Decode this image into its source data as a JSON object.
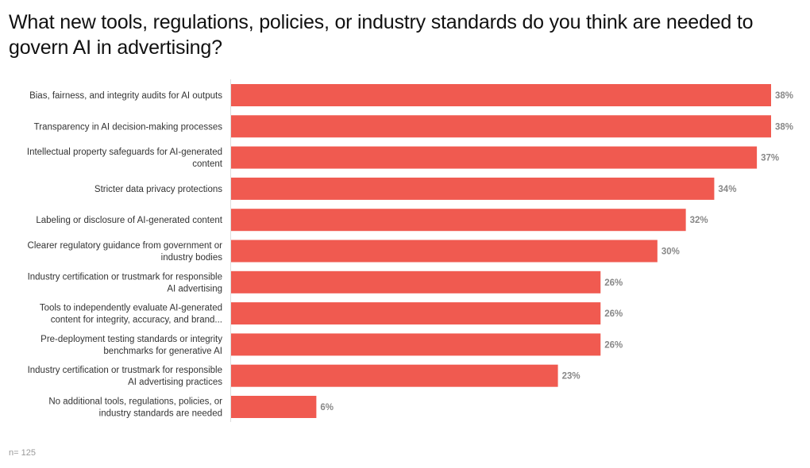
{
  "title": "What new tools, regulations, policies, or industry standards do you think are needed to govern AI in advertising?",
  "note": "n= 125",
  "colors": {
    "bar": "#F05A50",
    "axis": "#dddddd"
  },
  "chart_data": {
    "type": "bar",
    "orientation": "horizontal",
    "title": "What new tools, regulations, policies, or industry standards do you think are needed to govern AI in advertising?",
    "xlabel": "",
    "ylabel": "",
    "xlim": [
      0,
      38
    ],
    "value_suffix": "%",
    "categories": [
      [
        "Bias, fairness, and integrity audits for AI outputs"
      ],
      [
        "Transparency in AI decision-making processes"
      ],
      [
        "Intellectual property safeguards for AI-generated",
        "content"
      ],
      [
        "Stricter data privacy protections"
      ],
      [
        "Labeling or disclosure of AI-generated content"
      ],
      [
        "Clearer regulatory guidance from government or",
        "industry bodies"
      ],
      [
        "Industry certification or trustmark for responsible",
        "AI advertising"
      ],
      [
        "Tools to independently evaluate AI-generated",
        "content for integrity, accuracy, and brand..."
      ],
      [
        "Pre-deployment testing standards or integrity",
        "benchmarks for generative AI"
      ],
      [
        "Industry certification or trustmark for responsible",
        "AI advertising practices"
      ],
      [
        "No additional tools, regulations, policies, or",
        "industry standards are needed"
      ]
    ],
    "values": [
      38,
      38,
      37,
      34,
      32,
      30,
      26,
      26,
      26,
      23,
      6
    ]
  }
}
